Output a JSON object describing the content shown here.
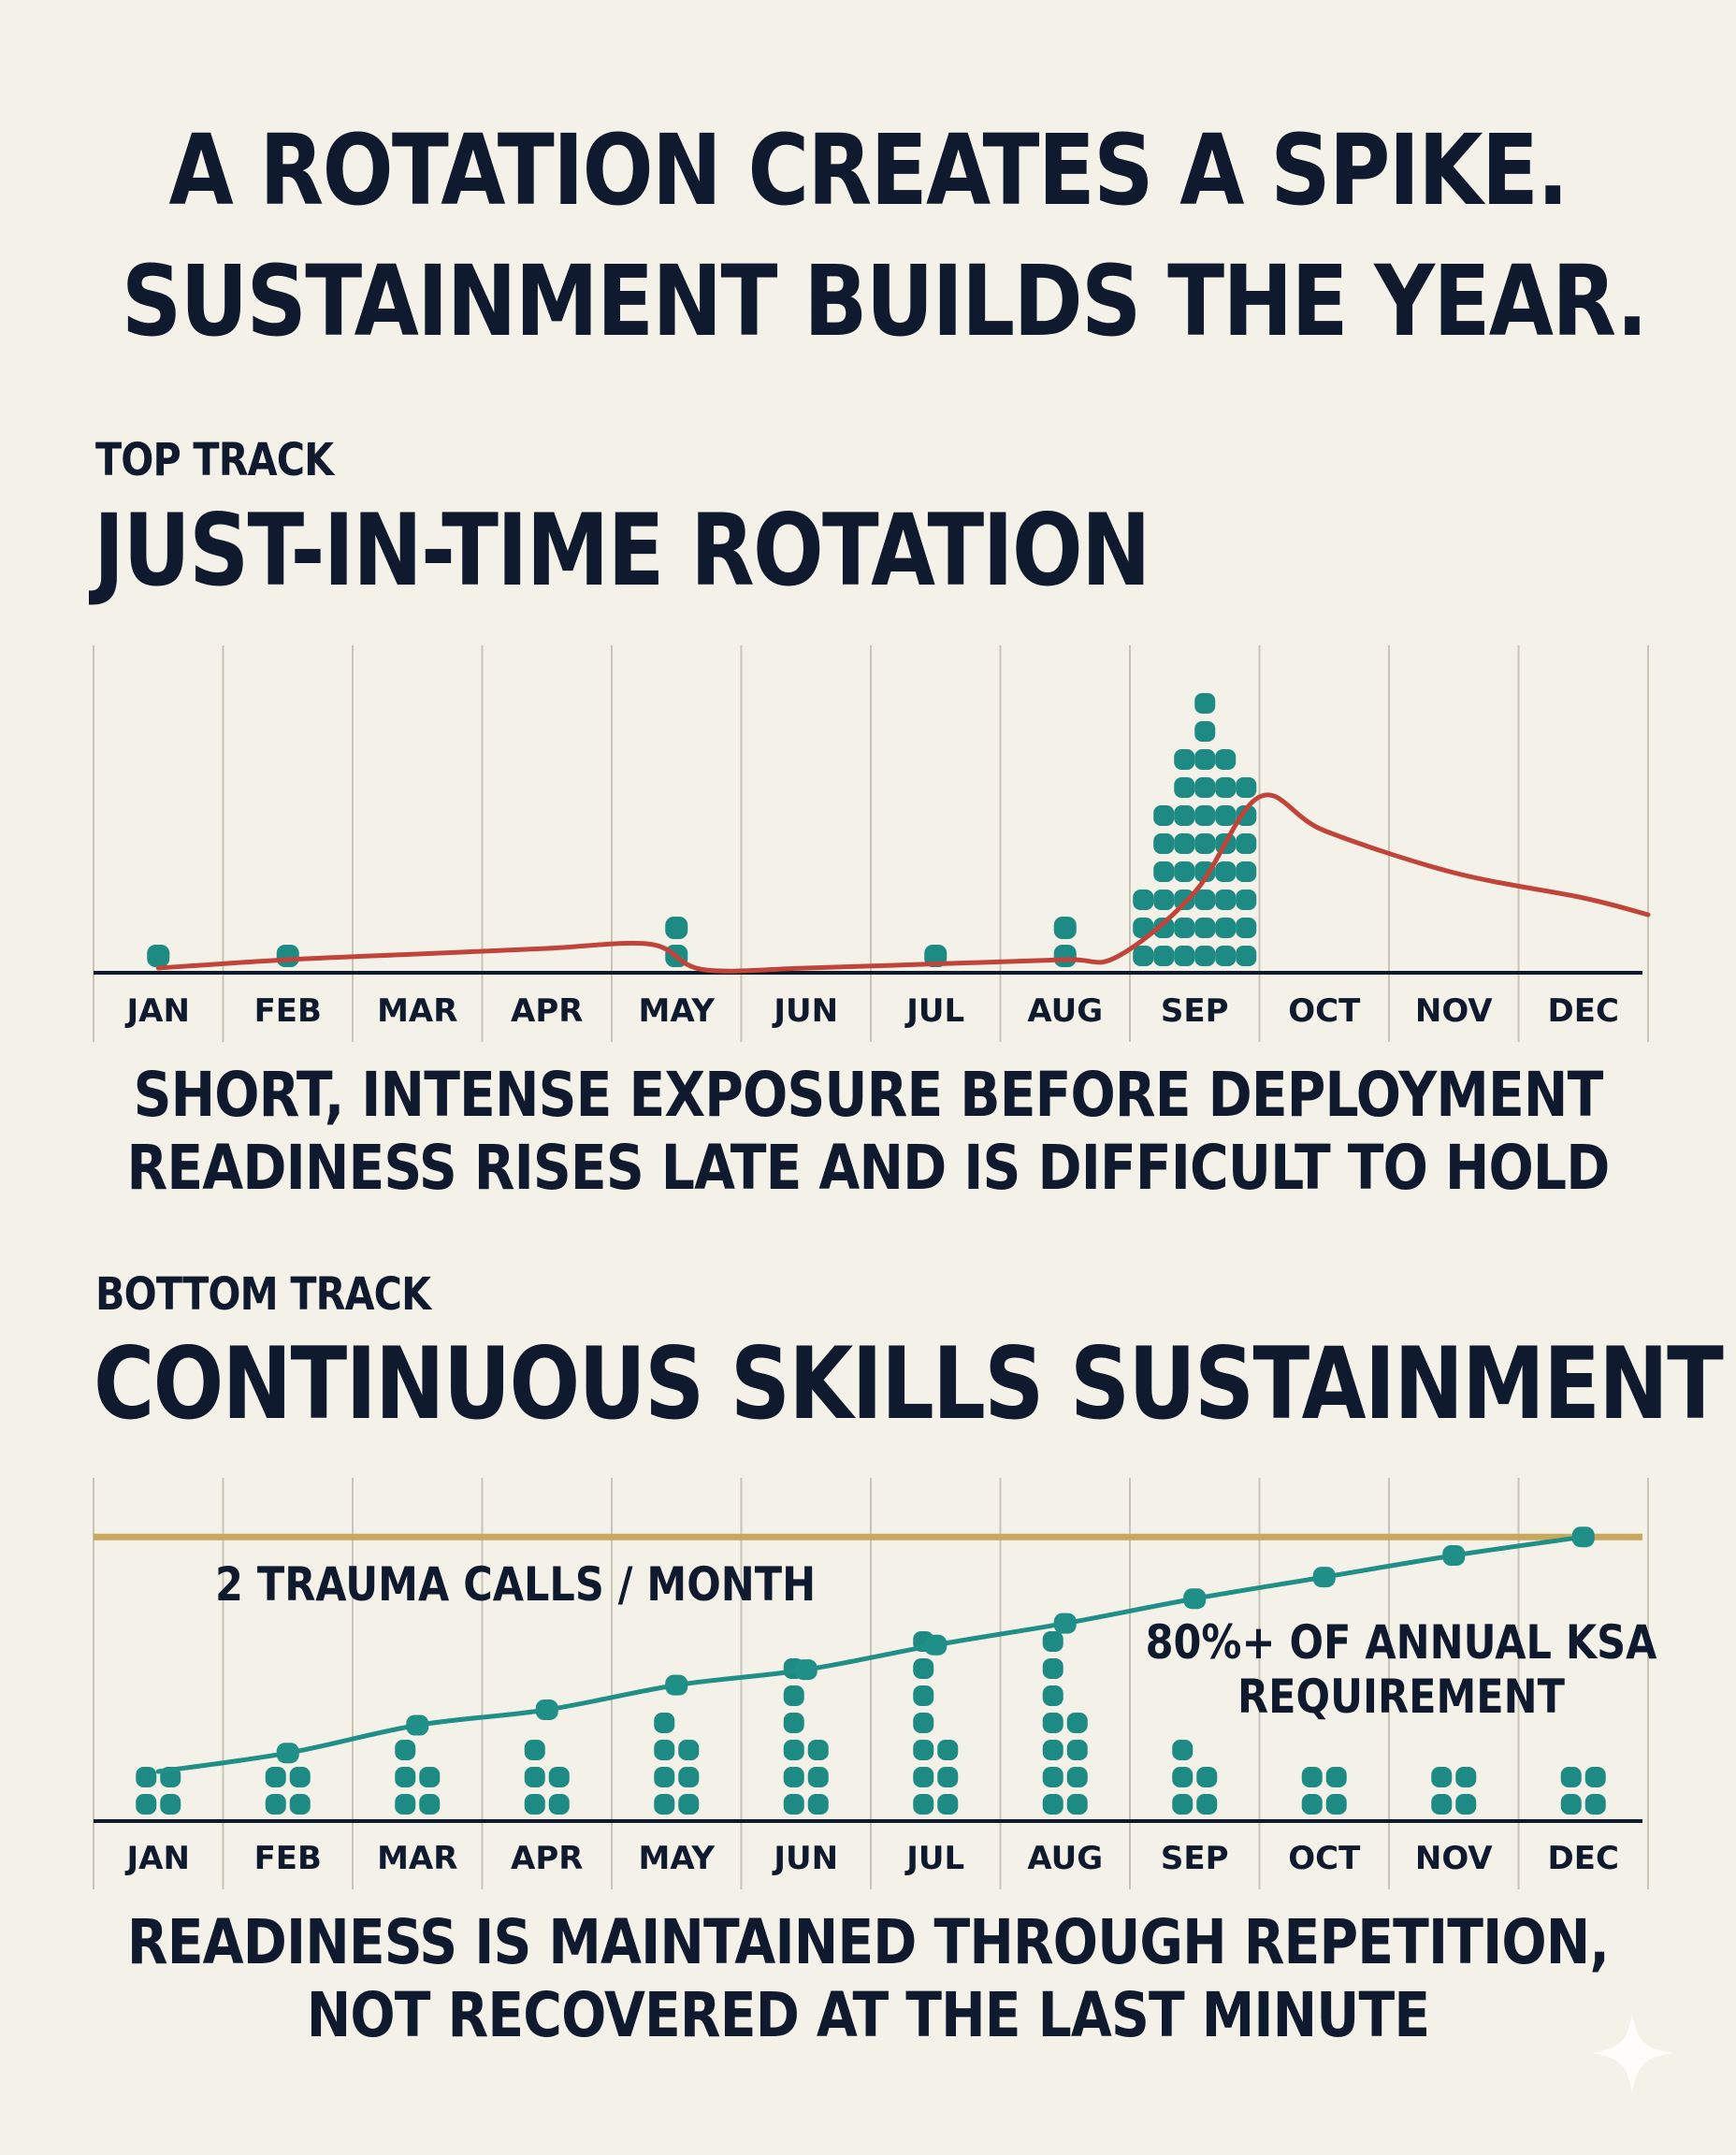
{
  "headline": {
    "line1": "A ROTATION CREATES A SPIKE.",
    "line2": "SUSTAINMENT BUILDS THE YEAR."
  },
  "top_track": {
    "kicker": "TOP TRACK",
    "title": "JUST-IN-TIME ROTATION",
    "caption_line1": "SHORT, INTENSE EXPOSURE BEFORE DEPLOYMENT",
    "caption_line2": "READINESS RISES LATE AND IS DIFFICULT TO HOLD"
  },
  "bottom_track": {
    "kicker": "BOTTOM TRACK",
    "title": "CONTINUOUS SKILLS SUSTAINMENT",
    "threshold_label": "2 TRAUMA CALLS / MONTH",
    "goal_label_line1": "80%+ OF ANNUAL KSA",
    "goal_label_line2": "REQUIREMENT",
    "caption_line1": "READINESS IS MAINTAINED THROUGH REPETITION,",
    "caption_line2": "NOT RECOVERED AT THE LAST MINUTE"
  },
  "colors": {
    "background": "#f4f1e8",
    "ink": "#0f1a2e",
    "dot_teal": "#1d8a83",
    "line_teal": "#1f8f88",
    "line_red": "#c0443a",
    "goal_gold": "#c8a75e",
    "grid": "#c9c4b6"
  },
  "icons": {
    "corner": "sparkle-icon"
  },
  "chart_data": [
    {
      "type": "dot-plot-with-line",
      "name": "top_track",
      "categories": [
        "JAN",
        "FEB",
        "MAR",
        "APR",
        "MAY",
        "JUN",
        "JUL",
        "AUG",
        "SEP",
        "OCT",
        "NOV",
        "DEC"
      ],
      "dot_stacks": [
        [
          1
        ],
        [
          1
        ],
        [],
        [],
        [
          2
        ],
        [],
        [
          1
        ],
        [
          2
        ],
        [
          3,
          6,
          8,
          10,
          8,
          7
        ],
        [],
        [],
        []
      ],
      "readiness_line": [
        {
          "x": 0.0,
          "y": 0.1
        },
        {
          "x": 1.0,
          "y": 0.4
        },
        {
          "x": 2.0,
          "y": 0.6
        },
        {
          "x": 3.0,
          "y": 0.8
        },
        {
          "x": 3.8,
          "y": 0.95
        },
        {
          "x": 4.2,
          "y": 0.05
        },
        {
          "x": 5.0,
          "y": 0.1
        },
        {
          "x": 6.0,
          "y": 0.25
        },
        {
          "x": 7.0,
          "y": 0.4
        },
        {
          "x": 7.4,
          "y": 0.5
        },
        {
          "x": 8.0,
          "y": 2.8
        },
        {
          "x": 8.5,
          "y": 6.2
        },
        {
          "x": 9.0,
          "y": 5.0
        },
        {
          "x": 10.0,
          "y": 3.5
        },
        {
          "x": 11.0,
          "y": 2.6
        },
        {
          "x": 11.5,
          "y": 2.0
        }
      ]
    },
    {
      "type": "dot-plot-with-line",
      "name": "bottom_track",
      "categories": [
        "JAN",
        "FEB",
        "MAR",
        "APR",
        "MAY",
        "JUN",
        "JUL",
        "AUG",
        "SEP",
        "OCT",
        "NOV",
        "DEC"
      ],
      "dot_stacks": [
        [
          2,
          2
        ],
        [
          2,
          2
        ],
        [
          3,
          2
        ],
        [
          3,
          2
        ],
        [
          4,
          3
        ],
        [
          6,
          3
        ],
        [
          7,
          3
        ],
        [
          7,
          4
        ],
        [
          3,
          2
        ],
        [
          2,
          2
        ],
        [
          2,
          2
        ],
        [
          2,
          2
        ]
      ],
      "readiness_line": [
        {
          "x": 0.0,
          "y": 1.0
        },
        {
          "x": 1.0,
          "y": 1.6
        },
        {
          "x": 2.0,
          "y": 2.5
        },
        {
          "x": 3.0,
          "y": 3.0
        },
        {
          "x": 4.0,
          "y": 3.8
        },
        {
          "x": 5.0,
          "y": 4.3
        },
        {
          "x": 6.0,
          "y": 5.1
        },
        {
          "x": 7.0,
          "y": 5.8
        },
        {
          "x": 8.0,
          "y": 6.6
        },
        {
          "x": 9.0,
          "y": 7.3
        },
        {
          "x": 10.0,
          "y": 8.0
        },
        {
          "x": 11.0,
          "y": 8.6
        }
      ],
      "goal_level": 8.6
    }
  ]
}
